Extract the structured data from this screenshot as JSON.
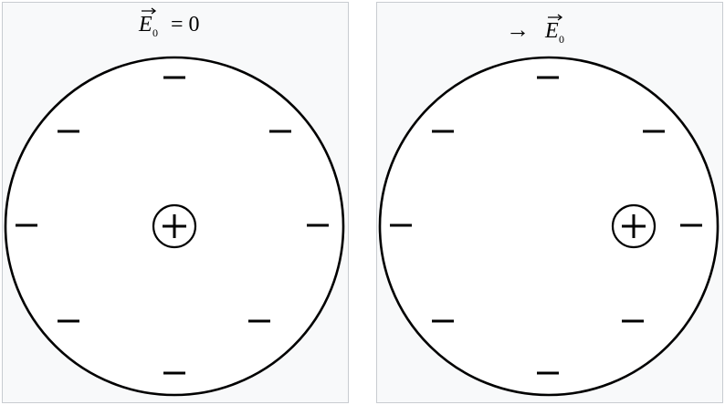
{
  "panels": [
    {
      "label": {
        "vector": "E",
        "subscript": "0",
        "suffix": "= 0"
      },
      "field": "none"
    },
    {
      "label": {
        "arrow": "→",
        "vector": "E",
        "subscript": "0"
      },
      "field": "right"
    }
  ],
  "charges": {
    "electron_symbol": "−",
    "nucleus_symbol": "+"
  },
  "colors": {
    "panel_background": "#f8f9fa",
    "panel_border": "#c8ccd1",
    "ink": "#000000"
  }
}
